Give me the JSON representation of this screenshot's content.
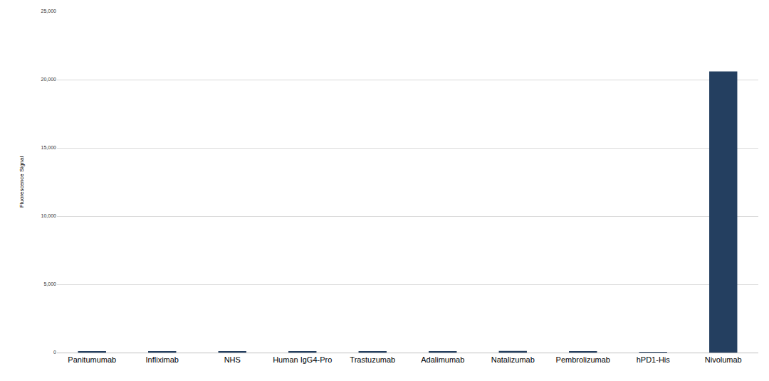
{
  "chart_data": {
    "type": "bar",
    "y_label": "Fluorescence Signal",
    "categories": [
      "Panitumumab",
      "Infliximab",
      "NHS",
      "Human IgG4-Pro",
      "Trastuzumab",
      "Adalimumab",
      "Natalizumab",
      "Pembrolizumab",
      "hPD1-His",
      "Nivolumab"
    ],
    "values": [
      60,
      80,
      60,
      80,
      80,
      110,
      120,
      70,
      40,
      20600
    ],
    "color": "#243f60",
    "ylim": [
      0,
      25000
    ],
    "yticks": [
      0,
      {
        "value": 5000,
        "label": "5,000"
      },
      {
        "value": 10000,
        "label": "10,000"
      },
      {
        "value": 15000,
        "label": "15,000"
      },
      {
        "value": 20000,
        "label": "20,000"
      },
      {
        "value": 25000,
        "label": "25,000"
      }
    ],
    "grid": true
  }
}
